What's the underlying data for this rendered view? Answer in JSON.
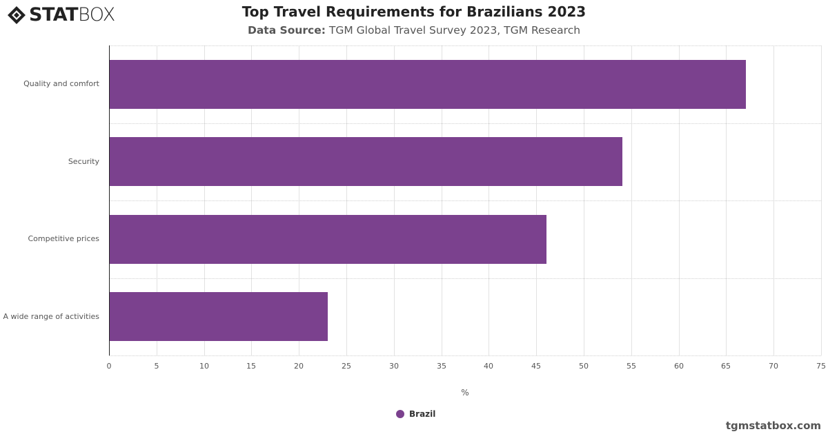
{
  "header": {
    "logo": {
      "bold": "STAT",
      "light": "BOX"
    },
    "title": "Top Travel Requirements for Brazilians 2023",
    "subtitle_label": "Data Source:",
    "subtitle_text": " TGM Global Travel Survey 2023, TGM Research"
  },
  "chart_data": {
    "type": "bar",
    "orientation": "horizontal",
    "title": "Top Travel Requirements for Brazilians 2023",
    "subtitle": "Data Source: TGM Global Travel Survey 2023, TGM Research",
    "categories": [
      "Quality and comfort",
      "Security",
      "Competitive prices",
      "A wide range of activities"
    ],
    "series": [
      {
        "name": "Brazil",
        "values": [
          67,
          54,
          46,
          23
        ],
        "color": "#7b418e"
      }
    ],
    "xlabel": "%",
    "ylabel": "",
    "xlim": [
      0,
      75
    ],
    "xticks": [
      "0",
      "5",
      "10",
      "15",
      "20",
      "25",
      "30",
      "35",
      "40",
      "45",
      "50",
      "55",
      "60",
      "65",
      "70",
      "75"
    ],
    "grid": true,
    "legend_position": "bottom"
  },
  "footer": {
    "site": "tgmstatbox.com"
  }
}
